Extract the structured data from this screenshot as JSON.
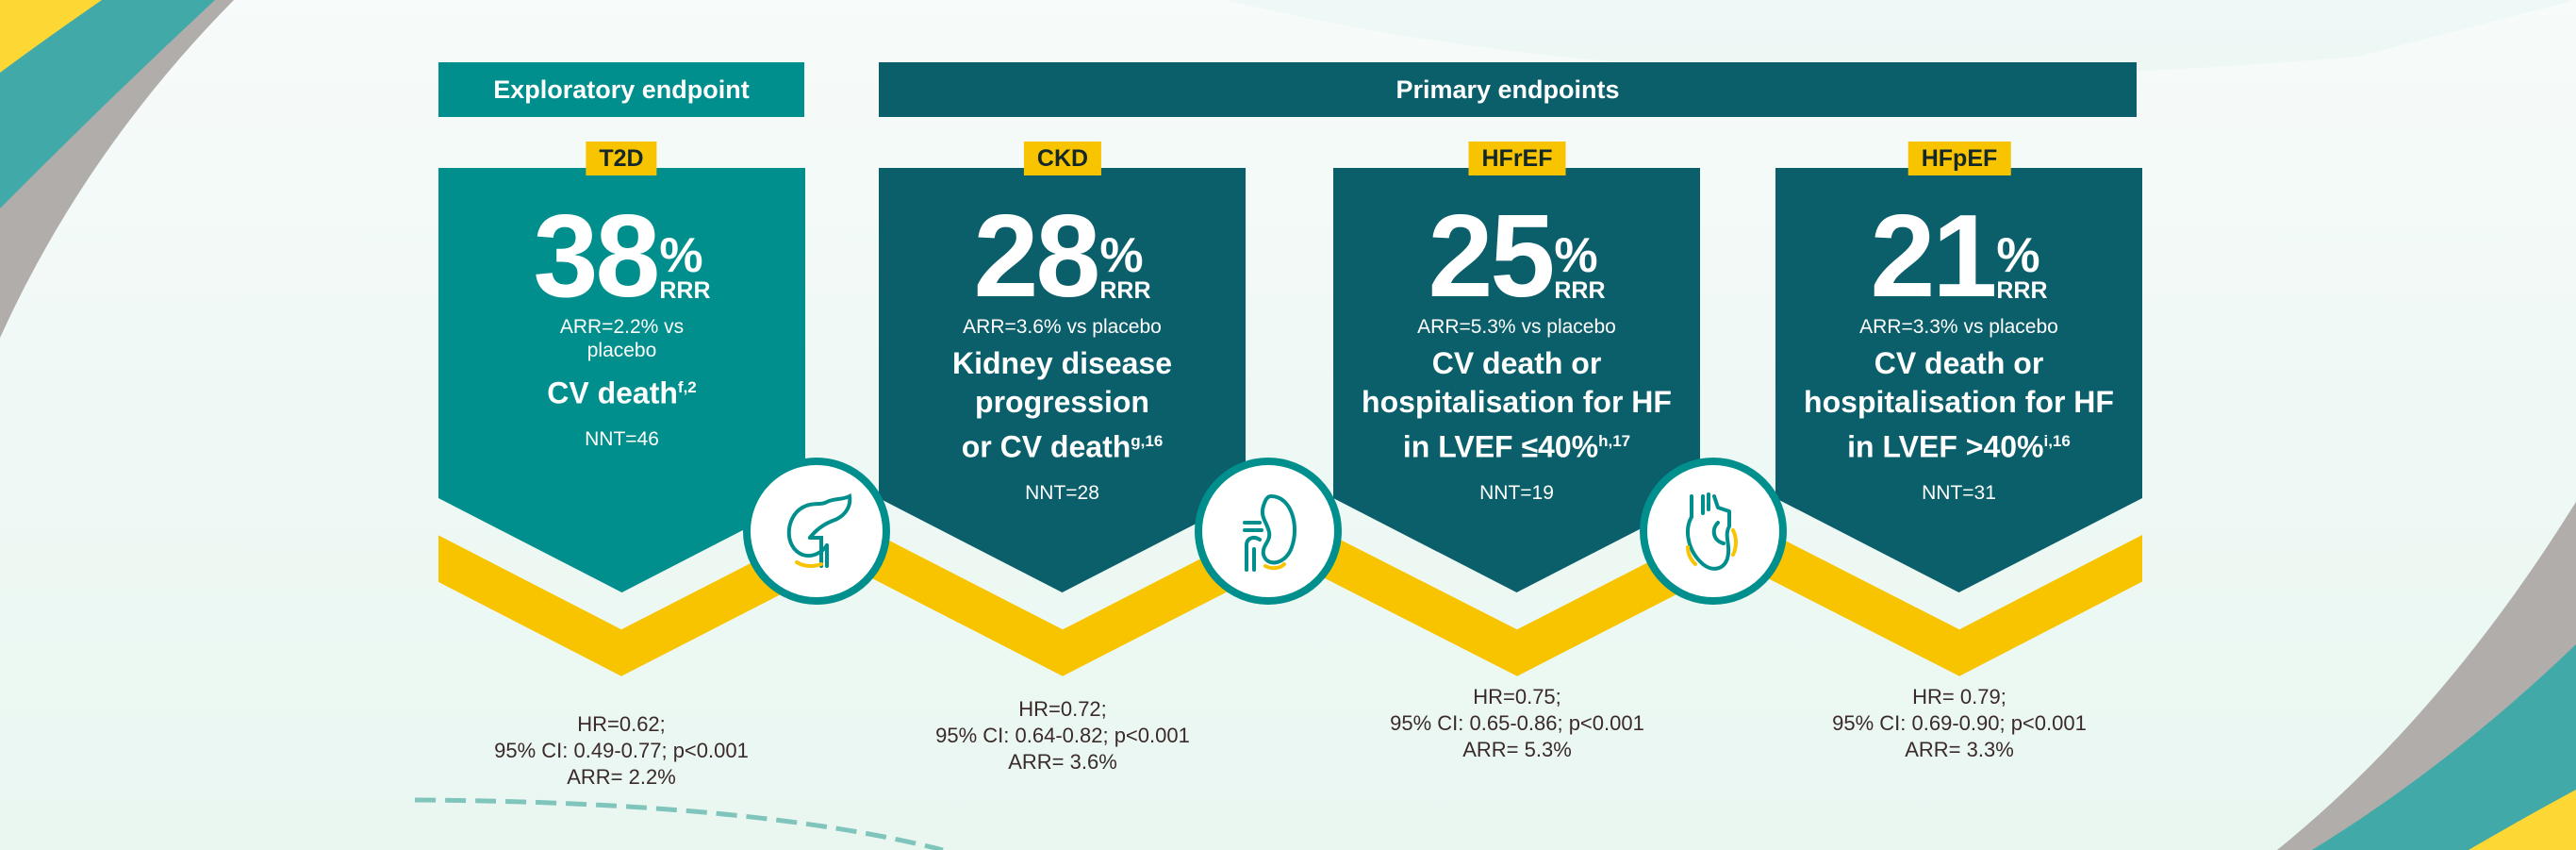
{
  "headers": {
    "exploratory": "Exploratory endpoint",
    "primary": "Primary endpoints"
  },
  "colors": {
    "exploratory": "#008f8c",
    "primary": "#0a5f6a",
    "accent_yellow": "#f8c400",
    "stats_text": "#3a2a2a"
  },
  "cards": [
    {
      "tag": "T2D",
      "value": "38",
      "percent": "%",
      "rrr": "RRR",
      "arr": "ARR=2.2% vs placebo",
      "title_lines": [
        "CV death"
      ],
      "title_sup": "f,2",
      "nnt": "NNT=46",
      "icon": "pancreas-icon",
      "stats": [
        "HR=0.62;",
        "95% CI: 0.49-0.77; p<0.001",
        "ARR= 2.2%"
      ]
    },
    {
      "tag": "CKD",
      "value": "28",
      "percent": "%",
      "rrr": "RRR",
      "arr": "ARR=3.6% vs placebo",
      "title_lines": [
        "Kidney disease",
        "progression",
        "or CV death"
      ],
      "title_sup": "g,16",
      "nnt": "NNT=28",
      "icon": "kidney-icon",
      "stats": [
        "HR=0.72;",
        "95% CI: 0.64-0.82; p<0.001",
        "ARR= 3.6%"
      ]
    },
    {
      "tag": "HFrEF",
      "value": "25",
      "percent": "%",
      "rrr": "RRR",
      "arr": "ARR=5.3% vs placebo",
      "title_lines": [
        "CV death or",
        "hospitalisation for HF",
        "in LVEF ≤40%"
      ],
      "title_sup": "h,17",
      "nnt": "NNT=19",
      "icon": "heart-icon",
      "stats": [
        "HR=0.75;",
        "95% CI: 0.65-0.86; p<0.001",
        "ARR= 5.3%"
      ]
    },
    {
      "tag": "HFpEF",
      "value": "21",
      "percent": "%",
      "rrr": "RRR",
      "arr": "ARR=3.3% vs placebo",
      "title_lines": [
        "CV death or",
        "hospitalisation for HF",
        "in LVEF >40%"
      ],
      "title_sup": "i,16",
      "nnt": "NNT=31",
      "stats": [
        "HR= 0.79;",
        "95% CI: 0.69-0.90; p<0.001",
        "ARR= 3.3%"
      ]
    }
  ]
}
